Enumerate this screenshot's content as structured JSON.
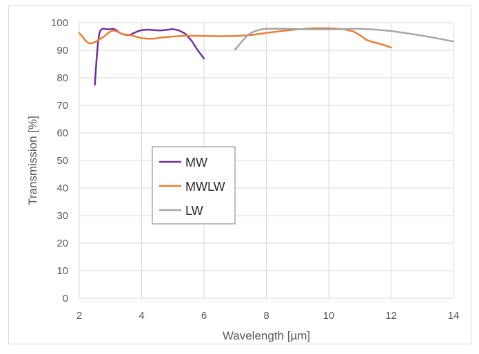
{
  "chart_data": {
    "type": "line",
    "title": "",
    "xlabel": "Wavelength [µm]",
    "ylabel": "Transmission [%]",
    "xlim": [
      2,
      14
    ],
    "ylim": [
      0,
      100
    ],
    "x_ticks": [
      2,
      4,
      6,
      8,
      10,
      12,
      14
    ],
    "y_ticks": [
      0,
      10,
      20,
      30,
      40,
      50,
      60,
      70,
      80,
      90,
      100
    ],
    "grid": true,
    "legend_position": "center-left",
    "series": [
      {
        "name": "MW",
        "color": "#7030a0",
        "x": [
          2.5,
          2.55,
          2.6,
          2.65,
          2.7,
          2.75,
          2.8,
          2.9,
          3.0,
          3.1,
          3.2,
          3.3,
          3.4,
          3.5,
          3.6,
          3.7,
          3.8,
          3.9,
          4.0,
          4.2,
          4.4,
          4.6,
          4.8,
          5.0,
          5.2,
          5.4,
          5.6,
          5.8,
          6.0
        ],
        "y": [
          77.5,
          86,
          93,
          96.5,
          97.5,
          97.8,
          97.8,
          97.6,
          97.7,
          97.8,
          97.2,
          96.3,
          95.8,
          95.6,
          95.5,
          96,
          96.5,
          97,
          97.3,
          97.5,
          97.3,
          97.2,
          97.4,
          97.7,
          97.2,
          96,
          93.5,
          90,
          87
        ]
      },
      {
        "name": "MWLW",
        "color": "#ed7d31",
        "x": [
          2.0,
          2.1,
          2.2,
          2.3,
          2.4,
          2.5,
          2.6,
          2.7,
          2.8,
          2.9,
          3.0,
          3.1,
          3.2,
          3.4,
          3.6,
          3.8,
          4.0,
          4.2,
          4.4,
          4.6,
          5.0,
          5.5,
          6.0,
          6.5,
          7.0,
          7.5,
          8.0,
          8.5,
          9.0,
          9.5,
          10.0,
          10.5,
          10.8,
          11.0,
          11.2,
          11.4,
          11.6,
          11.8,
          12.0
        ],
        "y": [
          96.3,
          95,
          93.5,
          92.6,
          92.5,
          93,
          93.6,
          94.3,
          95,
          96,
          96.8,
          97.2,
          96.9,
          95.8,
          95.6,
          95,
          94.4,
          94.2,
          94.2,
          94.6,
          95,
          95.3,
          95.2,
          95.1,
          95.2,
          95.5,
          96.3,
          97,
          97.6,
          98,
          98,
          97.6,
          96.8,
          95.5,
          93.8,
          93,
          92.5,
          91.8,
          91
        ]
      },
      {
        "name": "LW",
        "color": "#a5a5a5",
        "x": [
          7.0,
          7.2,
          7.4,
          7.6,
          7.8,
          8.0,
          8.5,
          9.0,
          9.5,
          10.0,
          10.5,
          11.0,
          11.5,
          12.0,
          12.5,
          13.0,
          13.5,
          14.0
        ],
        "y": [
          90.2,
          93,
          95.5,
          96.8,
          97.5,
          97.8,
          97.8,
          97.7,
          97.6,
          97.6,
          97.7,
          97.8,
          97.5,
          97,
          96.2,
          95.3,
          94.3,
          93.2
        ]
      }
    ]
  }
}
